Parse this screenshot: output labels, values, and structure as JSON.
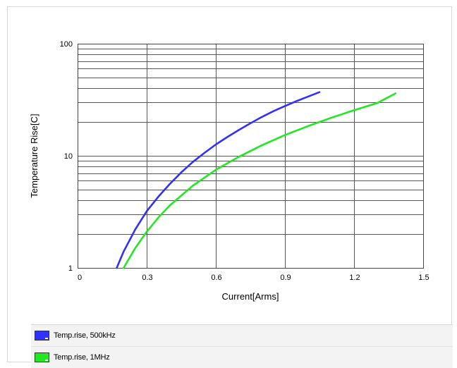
{
  "chart_data": {
    "type": "line",
    "title": "",
    "xlabel": "Current[Arms]",
    "ylabel": "Temperature Rise[C]",
    "xlim": [
      0,
      1.5
    ],
    "ylim": [
      1,
      100
    ],
    "yscale": "log",
    "grid": true,
    "x_ticks": [
      "0",
      "0.3",
      "0.6",
      "0.9",
      "1.2",
      "1.5"
    ],
    "y_ticks": [
      "1",
      "10",
      "100"
    ],
    "legend_position": "bottom",
    "series": [
      {
        "name": "Temp.rise, 500kHz",
        "color": "#3030ff",
        "x": [
          0.17,
          0.2,
          0.25,
          0.3,
          0.35,
          0.4,
          0.45,
          0.5,
          0.55,
          0.6,
          0.65,
          0.7,
          0.75,
          0.8,
          0.85,
          0.9,
          0.95,
          1.0,
          1.05
        ],
        "y": [
          1.0,
          1.4,
          2.2,
          3.2,
          4.3,
          5.6,
          7.1,
          8.8,
          10.6,
          12.6,
          14.7,
          17.0,
          19.5,
          22.2,
          25.0,
          27.8,
          30.7,
          33.7,
          37.0
        ]
      },
      {
        "name": "Temp.rise, 1MHz",
        "color": "#22e822",
        "x": [
          0.2,
          0.25,
          0.3,
          0.35,
          0.4,
          0.5,
          0.6,
          0.7,
          0.8,
          0.9,
          1.0,
          1.1,
          1.2,
          1.3,
          1.38
        ],
        "y": [
          1.0,
          1.5,
          2.1,
          2.8,
          3.6,
          5.4,
          7.5,
          9.8,
          12.4,
          15.3,
          18.4,
          21.8,
          25.5,
          29.5,
          36.0
        ]
      }
    ]
  }
}
